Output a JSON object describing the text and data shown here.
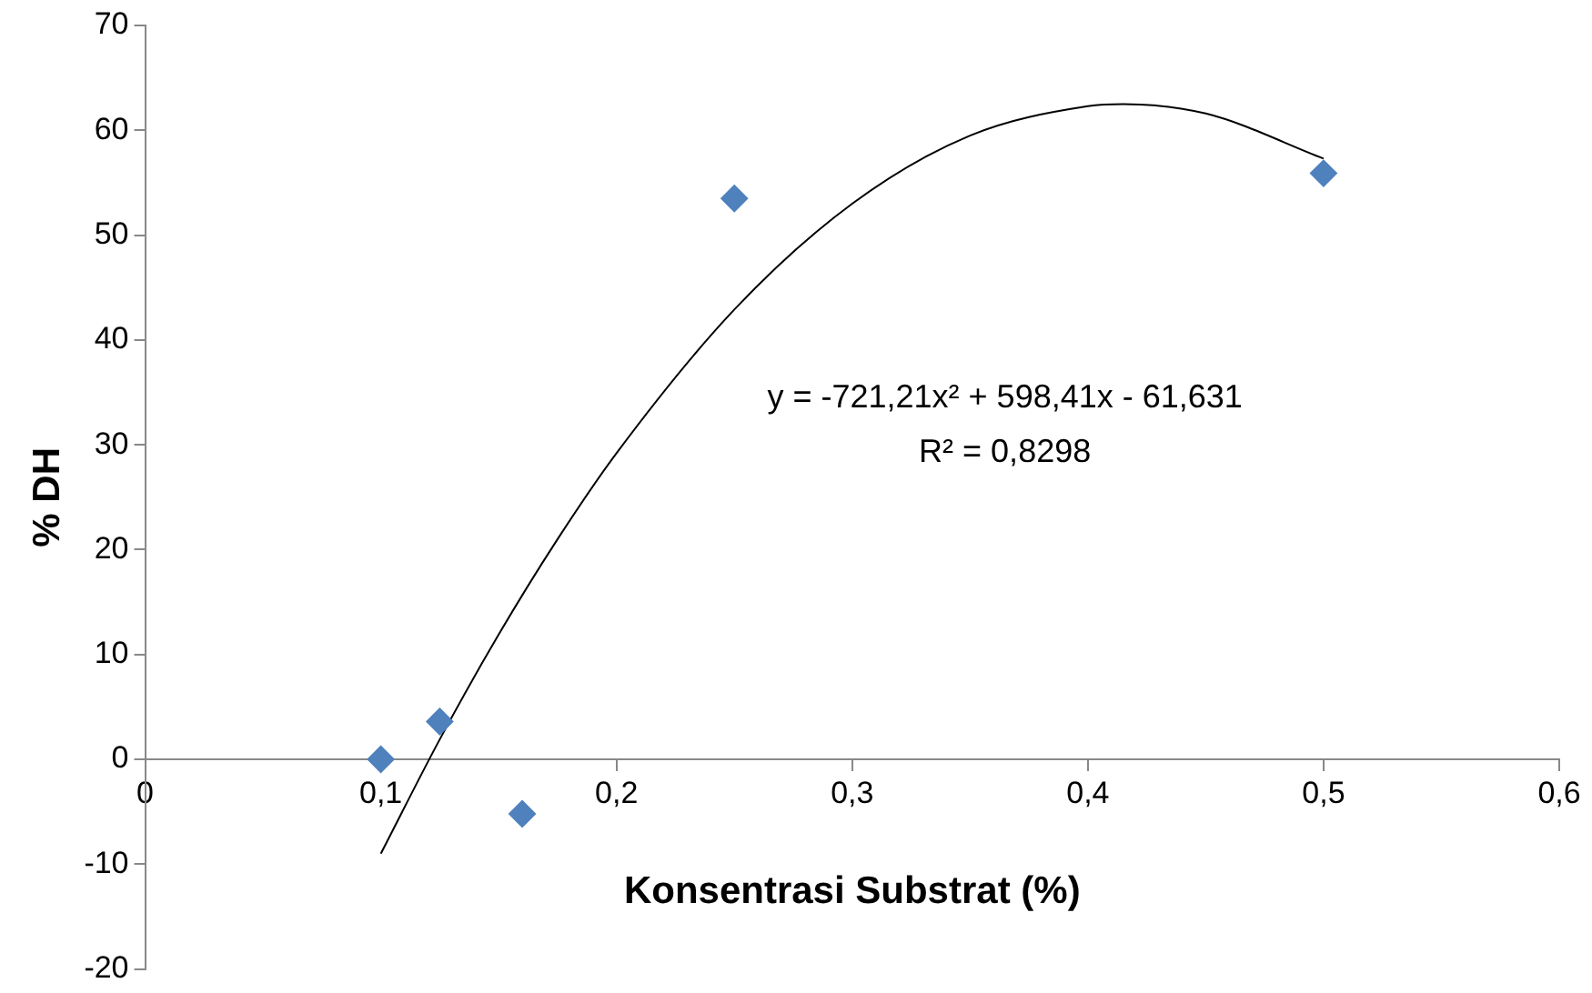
{
  "chart_data": {
    "type": "scatter",
    "xlabel": "Konsentrasi Substrat (%)",
    "ylabel": "% DH",
    "xlim": [
      0,
      0.6
    ],
    "xticks": [
      {
        "value": 0,
        "label": "0"
      },
      {
        "value": 0.1,
        "label": "0,1"
      },
      {
        "value": 0.2,
        "label": "0,2"
      },
      {
        "value": 0.3,
        "label": "0,3"
      },
      {
        "value": 0.4,
        "label": "0,4"
      },
      {
        "value": 0.5,
        "label": "0,5"
      },
      {
        "value": 0.6,
        "label": "0,6"
      }
    ],
    "ylim": [
      -20,
      70
    ],
    "yticks": [
      -20,
      -10,
      0,
      10,
      20,
      30,
      40,
      50,
      60,
      70
    ],
    "grid": false,
    "legend": false,
    "marker": "diamond",
    "series": [
      {
        "color": "#4f81bd",
        "x": [
          0.1,
          0.125,
          0.16,
          0.25,
          0.5
        ],
        "values": [
          0,
          3.6,
          -5.2,
          53.5,
          55.9
        ]
      },
      {
        "type": "line",
        "color": "#000000",
        "marker": "none",
        "x": [
          0.1,
          0.125,
          0.15,
          0.175,
          0.2,
          0.25,
          0.3,
          0.35,
          0.4,
          0.415,
          0.45,
          0.5
        ],
        "values": [
          -9,
          1.9,
          11.9,
          21,
          29.2,
          42.9,
          53,
          59.5,
          62.3,
          62.5,
          61.6,
          57.3
        ]
      }
    ],
    "annotations": [
      "y = -721,21x² + 598,41x - 61,631",
      "R² = 0,8298"
    ]
  }
}
